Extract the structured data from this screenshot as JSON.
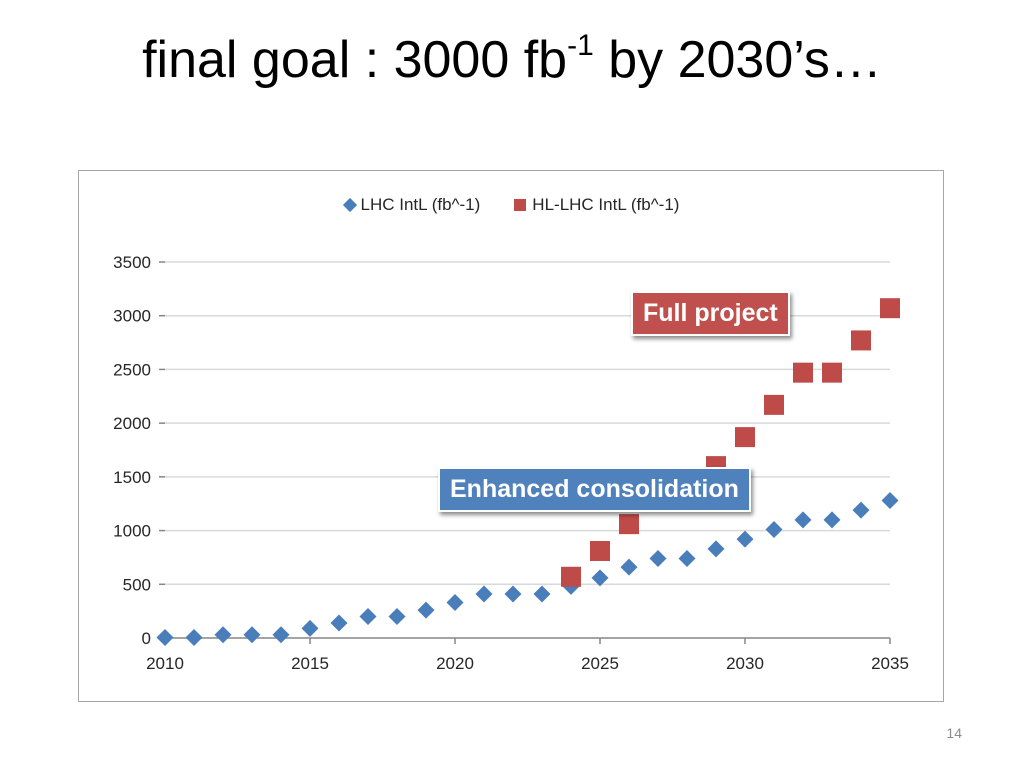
{
  "slide": {
    "title_main": "final goal : 3000 fb",
    "title_sup": "-1",
    "title_tail": " by 2030’s…",
    "page_number": "14"
  },
  "colors": {
    "lhc": "#4a7ebb",
    "hl_lhc": "#be4b48",
    "callout_red": "#c0504d",
    "callout_blue": "#4f81bd"
  },
  "annotations": {
    "full_project": "Full project",
    "enhanced_consolidation": "Enhanced consolidation"
  },
  "chart_data": {
    "type": "scatter",
    "title": "",
    "xlabel": "",
    "ylabel": "",
    "xlim": [
      2010,
      2035
    ],
    "ylim": [
      0,
      3500
    ],
    "xticks": [
      "2010",
      "2015",
      "2020",
      "2025",
      "2030",
      "2035"
    ],
    "yticks": [
      "0",
      "500",
      "1000",
      "1500",
      "2000",
      "2500",
      "3000",
      "3500"
    ],
    "grid": "horizontal",
    "legend_position": "top",
    "series": [
      {
        "name": "LHC IntL (fb^-1)",
        "marker": "diamond",
        "x": [
          2010,
          2011,
          2012,
          2013,
          2014,
          2015,
          2016,
          2017,
          2018,
          2019,
          2020,
          2021,
          2022,
          2023,
          2024,
          2025,
          2026,
          2027,
          2028,
          2029,
          2030,
          2031,
          2032,
          2033,
          2034,
          2035
        ],
        "y": [
          5,
          5,
          30,
          30,
          30,
          90,
          140,
          200,
          200,
          260,
          330,
          410,
          410,
          410,
          480,
          560,
          660,
          740,
          740,
          830,
          920,
          1010,
          1100,
          1100,
          1190,
          1280
        ]
      },
      {
        "name": "HL-LHC IntL (fb^-1)",
        "marker": "square",
        "x": [
          2024,
          2025,
          2026,
          2029,
          2030,
          2031,
          2032,
          2033,
          2034,
          2035
        ],
        "y": [
          570,
          810,
          1060,
          1600,
          1870,
          2170,
          2470,
          2470,
          2770,
          3070
        ]
      }
    ]
  }
}
